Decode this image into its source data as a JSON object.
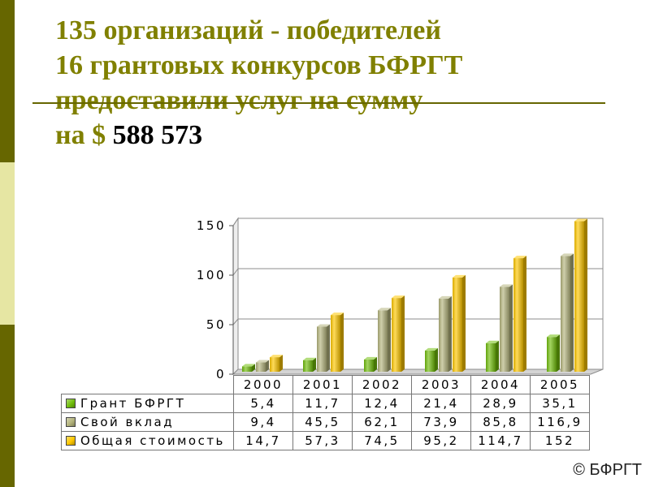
{
  "slide": {
    "title_lines": [
      "135 организаций - победителей",
      "16 грантовых конкурсов БФРГТ",
      "предоставили услуг на сумму"
    ],
    "amount_prefix": "на $",
    "amount": "588 573",
    "copyright": "© БФРГТ"
  },
  "colors": {
    "title": "#808000",
    "amount": "#000000",
    "rule": "#666600",
    "sidebar": [
      "#666600",
      "#e6e6a3",
      "#666600"
    ]
  },
  "chart_data": {
    "type": "bar",
    "three_d": true,
    "categories": [
      "2000",
      "2001",
      "2002",
      "2003",
      "2004",
      "2005"
    ],
    "series": [
      {
        "name": "Грант БФРГТ",
        "values": [
          5.4,
          11.7,
          12.4,
          21.4,
          28.9,
          35.1
        ],
        "labels": [
          "5,4",
          "11,7",
          "12,4",
          "21,4",
          "28,9",
          "35,1"
        ],
        "color": "#72bf0c"
      },
      {
        "name": "Свой вклад",
        "values": [
          9.4,
          45.5,
          62.1,
          73.9,
          85.8,
          116.9
        ],
        "labels": [
          "9,4",
          "45,5",
          "62,1",
          "73,9",
          "85,8",
          "116,9"
        ],
        "color": "#b5b57d"
      },
      {
        "name": "Общая стоимость",
        "values": [
          14.7,
          57.3,
          74.5,
          95.2,
          114.7,
          152
        ],
        "labels": [
          "14,7",
          "57,3",
          "74,5",
          "95,2",
          "114,7",
          "152"
        ],
        "color": "#ffc800"
      }
    ],
    "yticks": [
      0,
      50,
      100,
      150
    ],
    "ylim": [
      0,
      150
    ],
    "grid": true,
    "legend": "bottom"
  }
}
